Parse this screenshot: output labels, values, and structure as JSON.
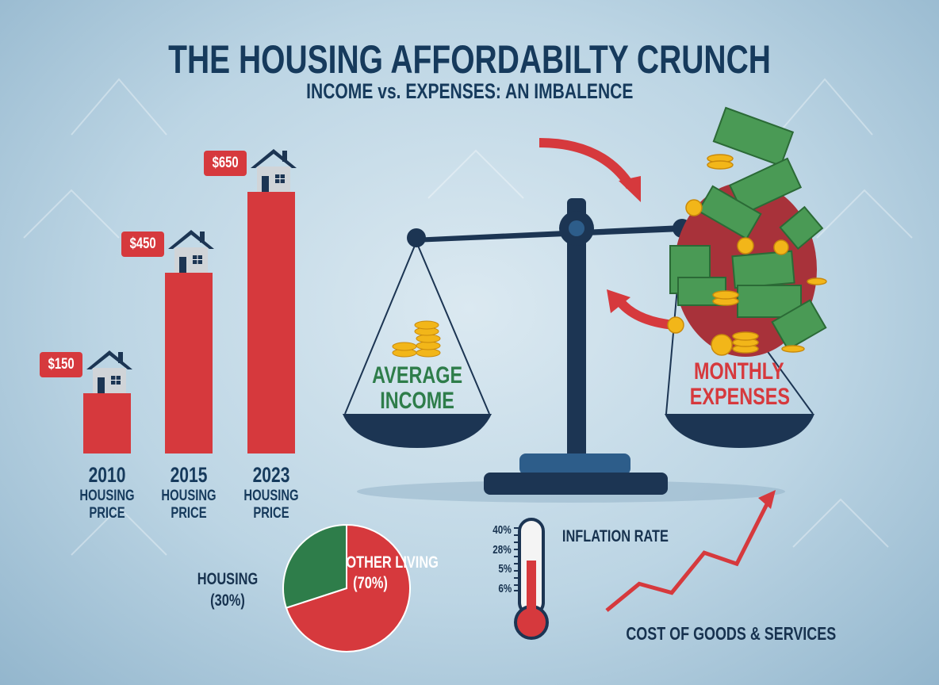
{
  "header": {
    "title": "THE HOUSING AFFORDABILTY CRUNCH",
    "subtitle": "INCOME vs. EXPENSES: AN IMBALENCE"
  },
  "colors": {
    "navy": "#163a5c",
    "red": "#d6393d",
    "green": "#2e7d4a",
    "gold": "#f2b619",
    "cash": "#4a9a55"
  },
  "chart_data": [
    {
      "type": "bar",
      "title": "Housing Price",
      "categories": [
        "2010",
        "2015",
        "2023"
      ],
      "values": [
        150,
        450,
        650
      ],
      "value_labels": [
        "$150",
        "$450",
        "$650"
      ],
      "category_sublabel": [
        "HOUSING",
        "PRICE"
      ]
    },
    {
      "type": "pie",
      "labels": [
        "HOUSING",
        "OTHER LIVING"
      ],
      "values": [
        30,
        70
      ],
      "value_labels": [
        "(30%)",
        "(70%)"
      ]
    },
    {
      "type": "line",
      "title": "COST OF GOODS & SERVICES",
      "y": [
        1,
        2.2,
        1.8,
        3.6,
        3.1,
        6
      ],
      "trend": "rising"
    }
  ],
  "scale": {
    "left_label": [
      "AVERAGE",
      "INCOME"
    ],
    "right_label": [
      "MONTHLY",
      "EXPENSES"
    ]
  },
  "thermometer": {
    "title": "INFLATION RATE",
    "ticks": [
      "40%",
      "28%",
      "5%",
      "6%"
    ],
    "fill_fraction": 0.55
  }
}
